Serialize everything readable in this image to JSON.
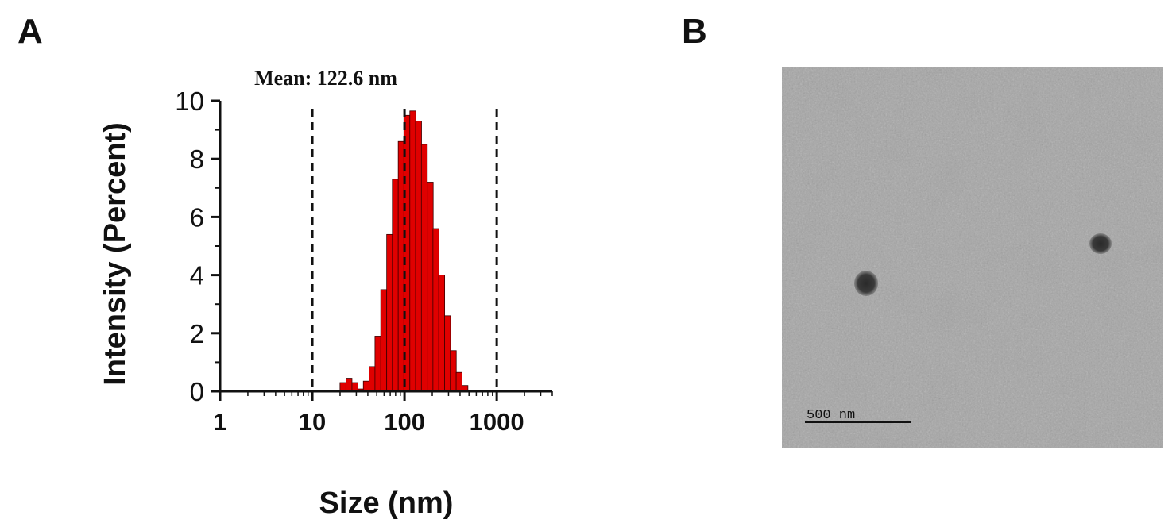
{
  "panels": {
    "a_label": "A",
    "b_label": "B"
  },
  "chart_data": {
    "type": "bar",
    "annotation": "Mean: 122.6 nm",
    "xlabel": "Size (nm)",
    "ylabel": "Intensity (Percent)",
    "x_scale": "log",
    "xlim": [
      1,
      4000
    ],
    "ylim": [
      0,
      10
    ],
    "x_ticks": [
      1,
      10,
      100,
      1000
    ],
    "x_tick_labels": [
      "1",
      "10",
      "100",
      "1000"
    ],
    "y_ticks": [
      0,
      2,
      4,
      6,
      8,
      10
    ],
    "y_tick_labels": [
      "0",
      "2",
      "4",
      "6",
      "8",
      "10"
    ],
    "reference_lines_x": [
      10,
      100,
      1000
    ],
    "reference_line_style": "dashed",
    "bar_color": "#e00000",
    "bars": [
      {
        "x": 21.5,
        "y": 0.3
      },
      {
        "x": 25.0,
        "y": 0.45
      },
      {
        "x": 29.0,
        "y": 0.3
      },
      {
        "x": 33.5,
        "y": 0.08
      },
      {
        "x": 38.5,
        "y": 0.35
      },
      {
        "x": 44.5,
        "y": 0.85
      },
      {
        "x": 51.5,
        "y": 1.9
      },
      {
        "x": 59.5,
        "y": 3.5
      },
      {
        "x": 69.0,
        "y": 5.4
      },
      {
        "x": 79.5,
        "y": 7.3
      },
      {
        "x": 92.0,
        "y": 8.6
      },
      {
        "x": 106.0,
        "y": 9.5
      },
      {
        "x": 123.0,
        "y": 9.65
      },
      {
        "x": 142.0,
        "y": 9.3
      },
      {
        "x": 164.0,
        "y": 8.5
      },
      {
        "x": 190.0,
        "y": 7.2
      },
      {
        "x": 219.0,
        "y": 5.6
      },
      {
        "x": 253.0,
        "y": 4.0
      },
      {
        "x": 293.0,
        "y": 2.6
      },
      {
        "x": 338.0,
        "y": 1.4
      },
      {
        "x": 391.0,
        "y": 0.65
      },
      {
        "x": 452.0,
        "y": 0.2
      }
    ]
  },
  "tem": {
    "scale_bar_label": "500 nm"
  }
}
